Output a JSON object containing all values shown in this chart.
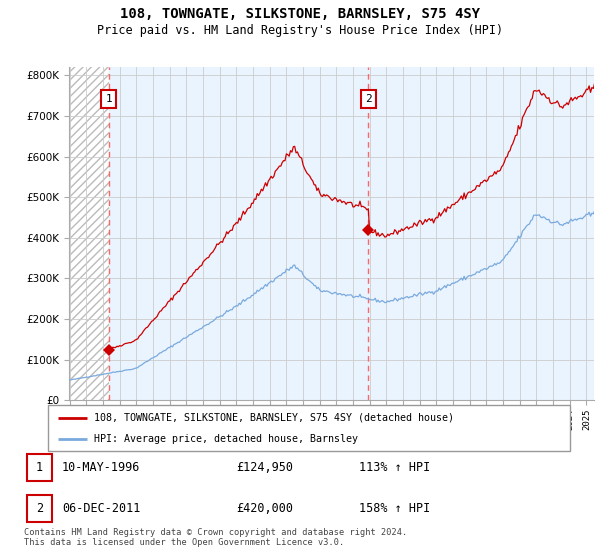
{
  "title": "108, TOWNGATE, SILKSTONE, BARNSLEY, S75 4SY",
  "subtitle": "Price paid vs. HM Land Registry's House Price Index (HPI)",
  "ytick_values": [
    0,
    100000,
    200000,
    300000,
    400000,
    500000,
    600000,
    700000,
    800000
  ],
  "ylim": [
    0,
    820000
  ],
  "xlim_start": 1994.0,
  "xlim_end": 2025.5,
  "sale1_year": 1996,
  "sale1_month": 5,
  "sale1_price": 124950,
  "sale2_year": 2011,
  "sale2_month": 12,
  "sale2_price": 420000,
  "legend_property": "108, TOWNGATE, SILKSTONE, BARNSLEY, S75 4SY (detached house)",
  "legend_hpi": "HPI: Average price, detached house, Barnsley",
  "footnote": "Contains HM Land Registry data © Crown copyright and database right 2024.\nThis data is licensed under the Open Government Licence v3.0.",
  "property_color": "#cc0000",
  "hpi_color": "#7aaadd",
  "grid_color": "#cccccc",
  "vline_color": "#ff6666",
  "bg_hatch_color": "#cccccc",
  "bg_active_color": "#ddeeff"
}
